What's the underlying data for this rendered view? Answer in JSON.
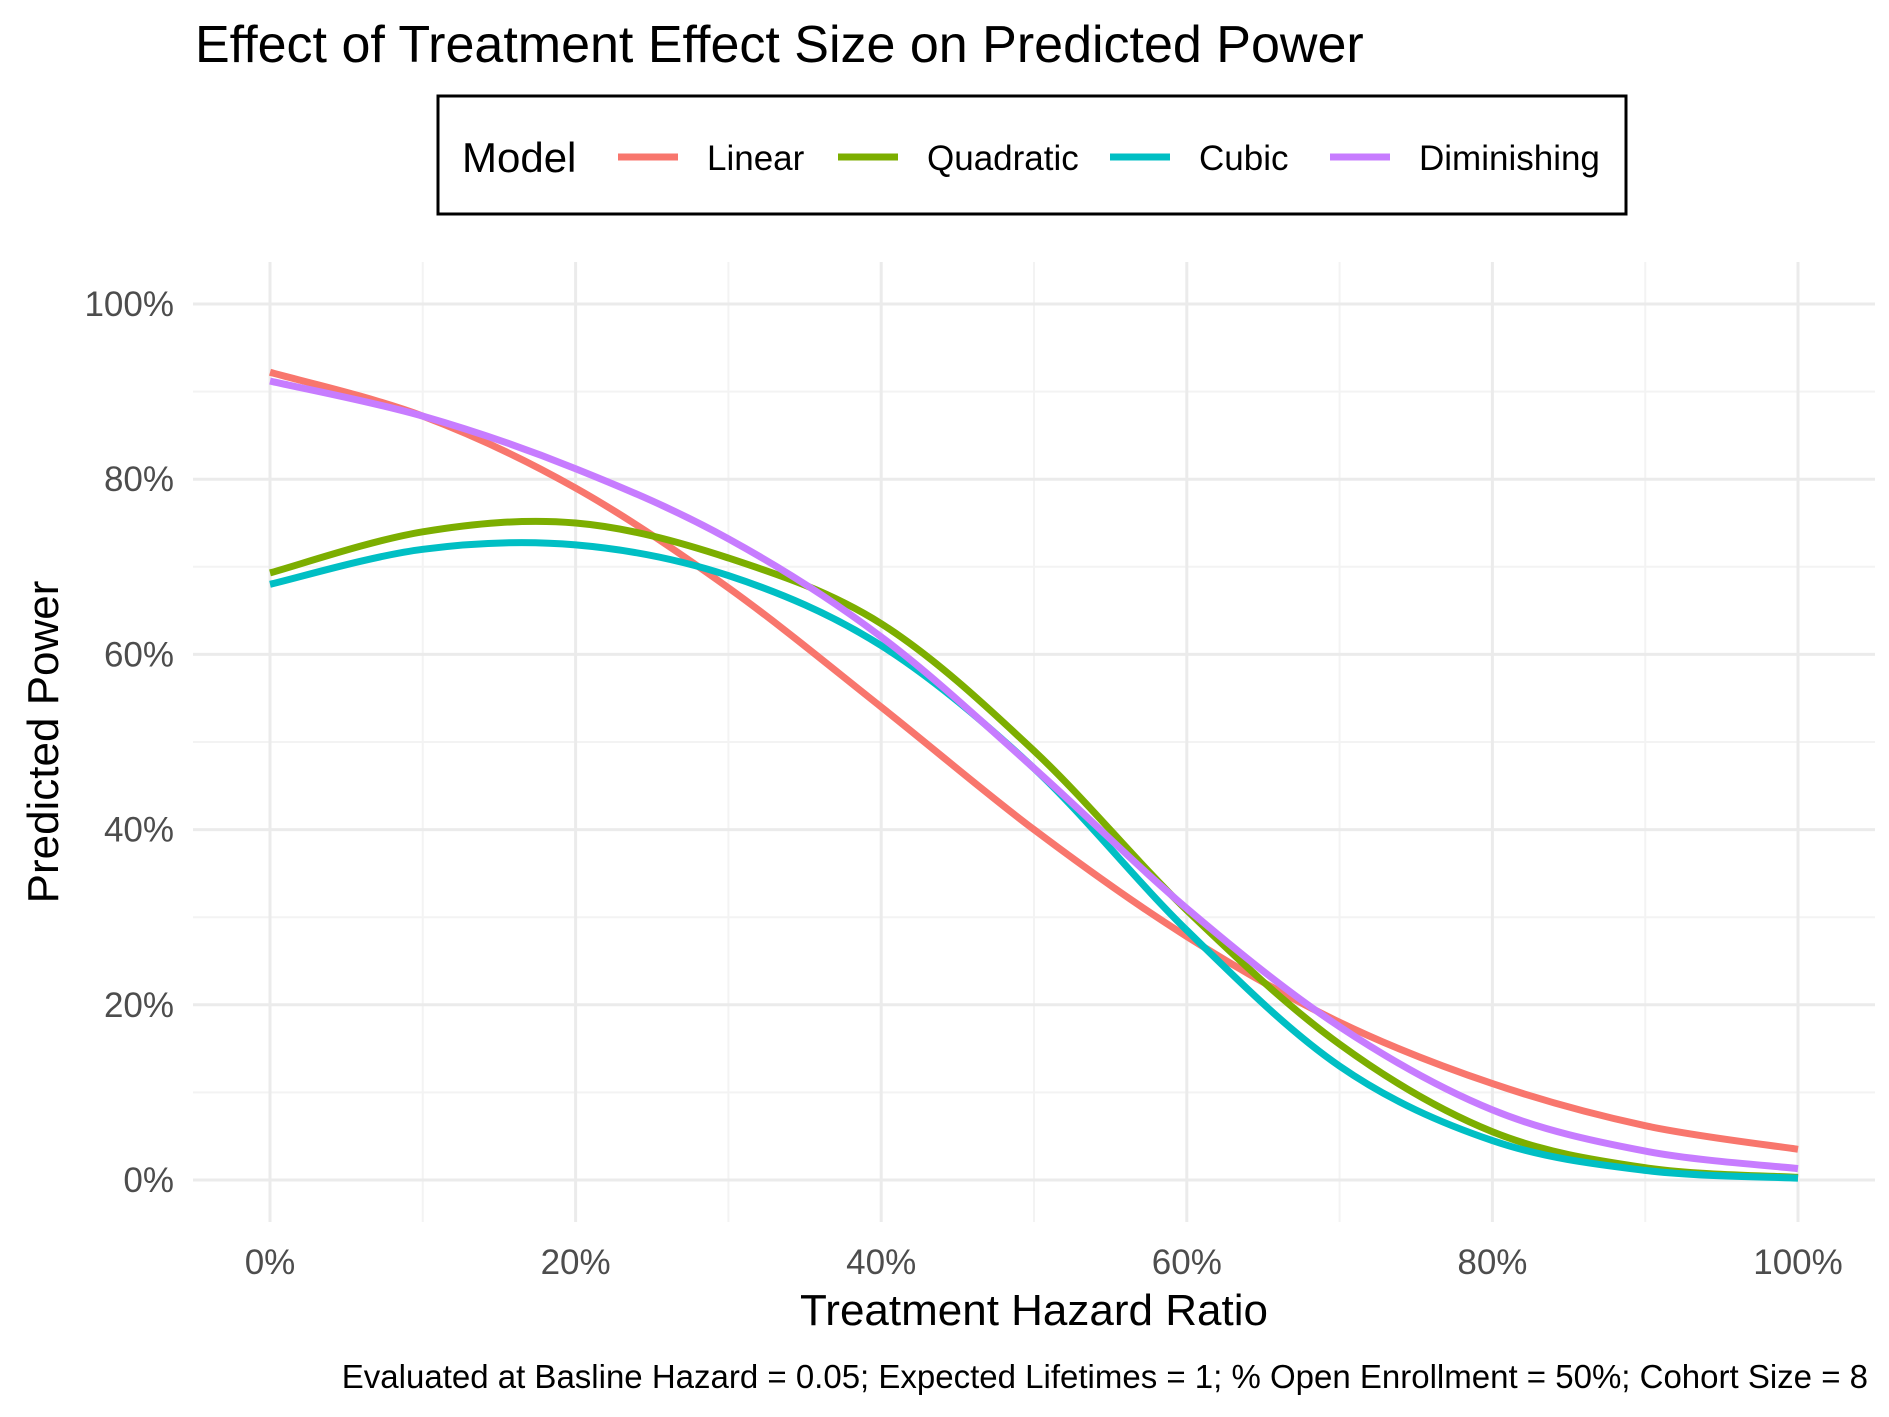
{
  "chart_data": {
    "type": "line",
    "title": "Effect of Treatment Effect Size on Predicted Power",
    "xlabel": "Treatment Hazard Ratio",
    "ylabel": "Predicted Power",
    "caption": "Evaluated at Basline Hazard = 0.05; Expected Lifetimes = 1; % Open Enrollment = 50%; Cohort Size = 8",
    "xlim": [
      0,
      1
    ],
    "ylim": [
      0,
      1
    ],
    "x_ticks": [
      0,
      0.2,
      0.4,
      0.6,
      0.8,
      1.0
    ],
    "x_tick_labels": [
      "0%",
      "20%",
      "40%",
      "60%",
      "80%",
      "100%"
    ],
    "y_ticks": [
      0,
      0.2,
      0.4,
      0.6,
      0.8,
      1.0
    ],
    "y_tick_labels": [
      "0%",
      "20%",
      "40%",
      "60%",
      "80%",
      "100%"
    ],
    "grid": true,
    "legend": {
      "title": "Model",
      "position": "top"
    },
    "x": [
      0,
      0.1,
      0.2,
      0.3,
      0.4,
      0.5,
      0.6,
      0.7,
      0.8,
      0.9,
      1.0
    ],
    "series": [
      {
        "name": "Linear",
        "color": "#F8766D",
        "values": [
          0.922,
          0.872,
          0.79,
          0.676,
          0.54,
          0.4,
          0.278,
          0.18,
          0.11,
          0.062,
          0.035
        ]
      },
      {
        "name": "Quadratic",
        "color": "#7CAE00",
        "values": [
          0.693,
          0.74,
          0.75,
          0.71,
          0.635,
          0.49,
          0.308,
          0.155,
          0.055,
          0.014,
          0.003
        ]
      },
      {
        "name": "Cubic",
        "color": "#00BFC4",
        "values": [
          0.68,
          0.72,
          0.725,
          0.69,
          0.61,
          0.47,
          0.285,
          0.13,
          0.045,
          0.011,
          0.002
        ]
      },
      {
        "name": "Diminishing",
        "color": "#C77CFF",
        "values": [
          0.912,
          0.872,
          0.812,
          0.732,
          0.62,
          0.47,
          0.31,
          0.175,
          0.08,
          0.033,
          0.013
        ]
      }
    ]
  }
}
